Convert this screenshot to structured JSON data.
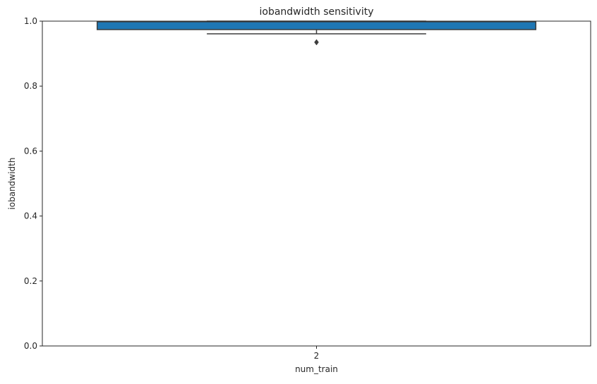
{
  "chart_data": {
    "type": "box",
    "title": "iobandwidth sensitivity",
    "xlabel": "num_train",
    "ylabel": "iobandwidth",
    "categories": [
      "2"
    ],
    "ylim": [
      0.0,
      1.0
    ],
    "yticks": [
      0.0,
      0.2,
      0.4,
      0.6,
      0.8,
      1.0
    ],
    "ytick_labels": [
      "0.0",
      "0.2",
      "0.4",
      "0.6",
      "0.8",
      "1.0"
    ],
    "boxes": [
      {
        "category": "2",
        "whisker_low": 0.961,
        "q1": 0.974,
        "median": 0.998,
        "q3": 0.999,
        "whisker_high": 1.0,
        "outliers": [
          0.935
        ]
      }
    ],
    "grid": false,
    "box_color": "#1f77b4",
    "line_color": "#3d3d3d"
  }
}
